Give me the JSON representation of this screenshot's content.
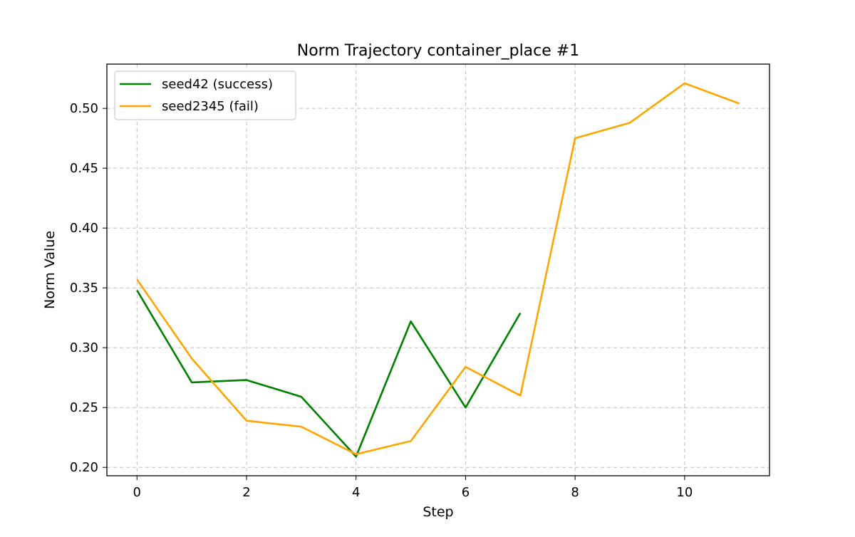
{
  "chart_data": {
    "type": "line",
    "title": "Norm Trajectory container_place #1",
    "xlabel": "Step",
    "ylabel": "Norm Value",
    "xlim": [
      -0.55,
      11.55
    ],
    "ylim": [
      0.193,
      0.537
    ],
    "xticks": [
      0,
      2,
      4,
      6,
      8,
      10
    ],
    "yticks": [
      0.2,
      0.25,
      0.3,
      0.35,
      0.4,
      0.45,
      0.5
    ],
    "xtick_labels": [
      "0",
      "2",
      "4",
      "6",
      "8",
      "10"
    ],
    "ytick_labels": [
      "0.20",
      "0.25",
      "0.30",
      "0.35",
      "0.40",
      "0.45",
      "0.50"
    ],
    "grid": true,
    "legend_position": "top-left",
    "series": [
      {
        "name": "seed42 (success)",
        "color": "#008000",
        "x": [
          0,
          1,
          2,
          3,
          4,
          5,
          6,
          7
        ],
        "y": [
          0.348,
          0.271,
          0.273,
          0.259,
          0.209,
          0.322,
          0.25,
          0.329
        ]
      },
      {
        "name": "seed2345 (fail)",
        "color": "#FFA500",
        "x": [
          0,
          1,
          2,
          3,
          4,
          5,
          6,
          7,
          8,
          9,
          10,
          11
        ],
        "y": [
          0.357,
          0.291,
          0.239,
          0.234,
          0.211,
          0.222,
          0.284,
          0.26,
          0.475,
          0.488,
          0.521,
          0.504
        ]
      }
    ]
  }
}
